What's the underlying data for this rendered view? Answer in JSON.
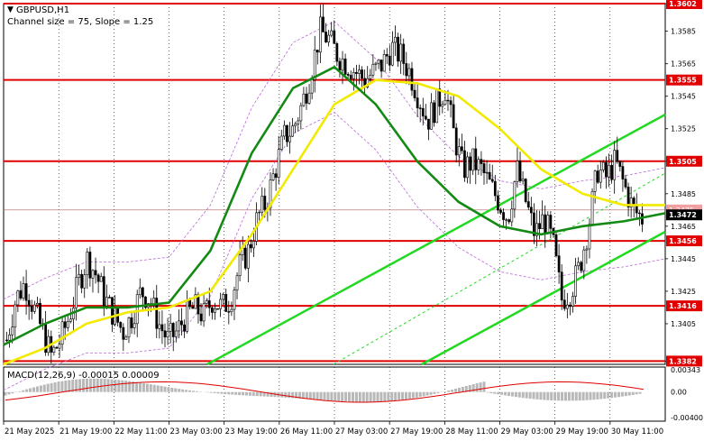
{
  "header": {
    "symbol": "GBPUSD,H1",
    "indicator": "Channel size = 75, Slope = 1.25",
    "dropdown_glyph": "▼"
  },
  "macd": {
    "label": "MACD(12,26,9) -0.00015 0.00009",
    "scale_labels": [
      "0.00343",
      "0.00",
      "-0.00400"
    ],
    "ylim": [
      -0.004,
      0.00343
    ]
  },
  "price_axis": {
    "ylim": [
      1.338,
      1.3602
    ],
    "ticks": [
      "1.3602",
      "1.3585",
      "1.3565",
      "1.3545",
      "1.3525",
      "1.3505",
      "1.3485",
      "1.3465",
      "1.3445",
      "1.3425",
      "1.3405",
      "1.3382"
    ],
    "tick_values": [
      1.3602,
      1.3585,
      1.3565,
      1.3545,
      1.3525,
      1.3505,
      1.3485,
      1.3465,
      1.3445,
      1.3425,
      1.3405,
      1.3382
    ]
  },
  "time_axis": {
    "labels": [
      "21 May 2025",
      "21 May 19:00",
      "22 May 11:00",
      "23 May 03:00",
      "23 May 19:00",
      "26 May 11:00",
      "27 May 03:00",
      "27 May 19:00",
      "28 May 11:00",
      "29 May 03:00",
      "29 May 19:00",
      "30 May 11:00"
    ]
  },
  "levels": [
    {
      "value": 1.3602,
      "label": "1.3602"
    },
    {
      "value": 1.3555,
      "label": "1.3555"
    },
    {
      "value": 1.3505,
      "label": "1.3505"
    },
    {
      "value": 1.3456,
      "label": "1.3456"
    },
    {
      "value": 1.3416,
      "label": "1.3416"
    },
    {
      "value": 1.3382,
      "label": "1.3382"
    }
  ],
  "current_price": {
    "value": 1.3472,
    "label": "1.3472"
  },
  "ask_price": {
    "value": 1.3475,
    "label": "1.3475"
  },
  "colors": {
    "level": "#e00000",
    "level_label_bg": "#e00000",
    "candle": "#000000",
    "ma_fast": "#f2ea00",
    "ma_slow": "#138a13",
    "channel": "#22d922",
    "envelope": "#b86bd6",
    "macd_hist": "#b8b8b8",
    "macd_signal": "#e00000",
    "current_bg": "#000000"
  },
  "chart_data": {
    "type": "candlestick",
    "symbol": "GBPUSD",
    "timeframe": "H1",
    "close_path": [
      1.3395,
      1.342,
      1.343,
      1.3415,
      1.34,
      1.3385,
      1.3395,
      1.341,
      1.343,
      1.3445,
      1.3435,
      1.342,
      1.341,
      1.34,
      1.341,
      1.3425,
      1.342,
      1.3405,
      1.3395,
      1.34,
      1.341,
      1.3415,
      1.341,
      1.342,
      1.3415,
      1.342,
      1.344,
      1.345,
      1.347,
      1.348,
      1.35,
      1.352,
      1.3525,
      1.354,
      1.356,
      1.3585,
      1.358,
      1.357,
      1.3565,
      1.356,
      1.3555,
      1.356,
      1.3565,
      1.3575,
      1.357,
      1.356,
      1.3545,
      1.353,
      1.354,
      1.355,
      1.352,
      1.35,
      1.3505,
      1.35,
      1.349,
      1.348,
      1.347,
      1.35,
      1.348,
      1.346,
      1.347,
      1.3455,
      1.342,
      1.3425,
      1.344,
      1.3465,
      1.35,
      1.3495,
      1.3505,
      1.349,
      1.3475,
      1.347
    ],
    "ma_fast_path": [
      1.338,
      1.339,
      1.3405,
      1.3412,
      1.3415,
      1.3425,
      1.346,
      1.35,
      1.354,
      1.3555,
      1.3553,
      1.3545,
      1.3525,
      1.35,
      1.3485,
      1.3478,
      1.3478
    ],
    "ma_slow_path": [
      1.3392,
      1.3405,
      1.3415,
      1.3415,
      1.3418,
      1.345,
      1.351,
      1.355,
      1.3563,
      1.354,
      1.3505,
      1.348,
      1.3465,
      1.346,
      1.3465,
      1.3468,
      1.3473
    ],
    "levels": [
      1.3602,
      1.3555,
      1.3505,
      1.3456,
      1.3416,
      1.3382
    ]
  }
}
